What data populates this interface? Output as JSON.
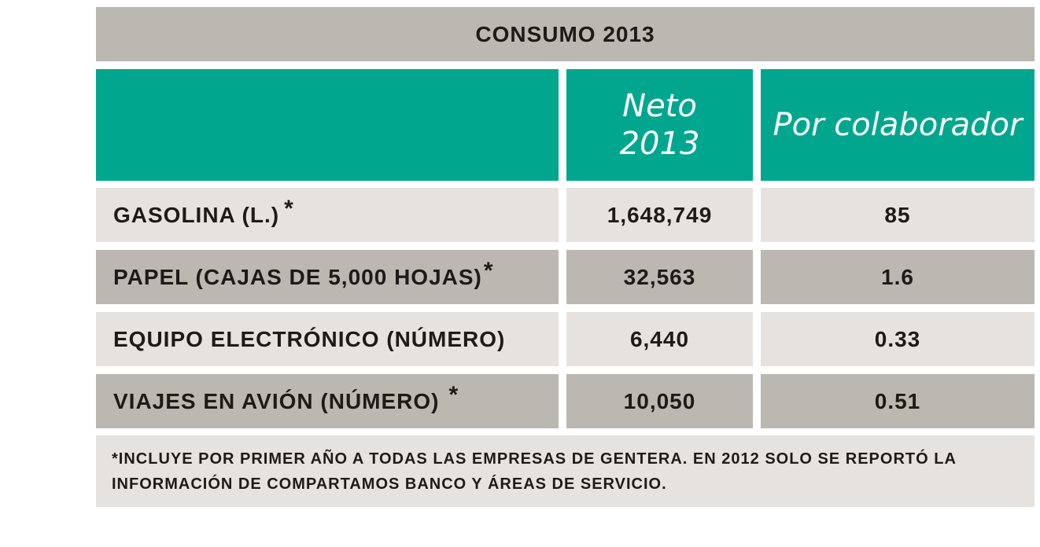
{
  "table": {
    "title": "CONSUMO 2013",
    "headers": {
      "neto_line1": "Neto",
      "neto_line2": "2013",
      "por_colaborador": "Por colaborador"
    },
    "rows": [
      {
        "label": "GASOLINA (L.)",
        "mark": "*",
        "neto": "1,648,749",
        "por_colaborador": "85"
      },
      {
        "label": "PAPEL (CAJAS DE 5,000 HOJAS)",
        "mark": "*",
        "neto": "32,563",
        "por_colaborador": "1.6"
      },
      {
        "label": "EQUIPO ELECTRÓNICO (NÚMERO)",
        "mark": "",
        "neto": "6,440",
        "por_colaborador": "0.33"
      },
      {
        "label": "VIAJES EN AVIÓN (NÚMERO)",
        "mark": "*",
        "neto": "10,050",
        "por_colaborador": "0.51"
      }
    ],
    "footnote": "*INCLUYE POR PRIMER AÑO A TODAS LAS EMPRESAS DE GENTERA. EN 2012 SOLO SE REPORTÓ LA INFORMACIÓN DE COMPARTAMOS BANCO Y ÁREAS DE SERVICIO."
  },
  "colors": {
    "teal_header": "#00a78e",
    "dark_gray": "#bbb7b1",
    "light_gray": "#e6e2e0",
    "text": "#1f1a17"
  }
}
